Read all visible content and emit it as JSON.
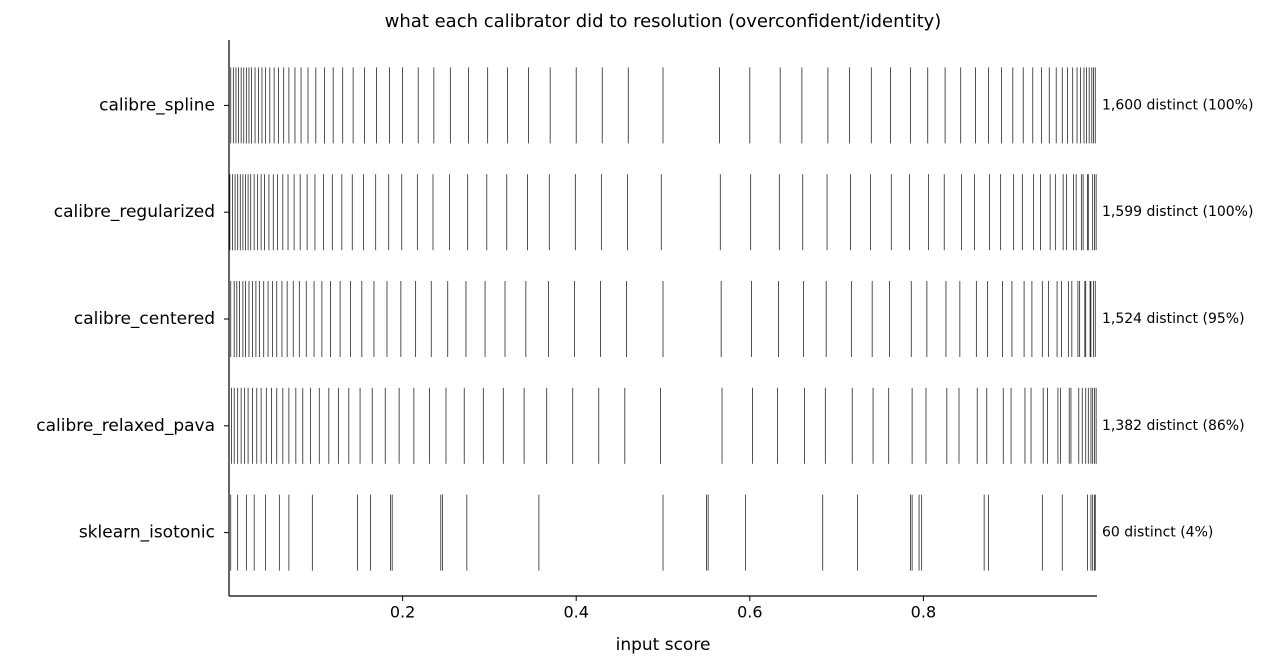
{
  "chart_data": {
    "type": "rug",
    "title": "what each calibrator did to resolution (overconfident/identity)",
    "xlabel": "input score",
    "xlim": [
      0,
      1
    ],
    "xticks": [
      0.2,
      0.4,
      0.6,
      0.8
    ],
    "color": "#000000",
    "series": [
      {
        "name": "calibre_spline",
        "annotation": "1,600 distinct (100%)",
        "values": [
          0.002,
          0.005,
          0.008,
          0.011,
          0.014,
          0.017,
          0.02,
          0.023,
          0.026,
          0.03,
          0.034,
          0.038,
          0.042,
          0.047,
          0.052,
          0.057,
          0.063,
          0.069,
          0.076,
          0.083,
          0.091,
          0.1,
          0.11,
          0.12,
          0.131,
          0.143,
          0.156,
          0.17,
          0.185,
          0.2,
          0.218,
          0.236,
          0.255,
          0.276,
          0.298,
          0.321,
          0.345,
          0.37,
          0.4,
          0.43,
          0.46,
          0.5,
          0.565,
          0.6,
          0.635,
          0.66,
          0.69,
          0.715,
          0.74,
          0.762,
          0.785,
          0.805,
          0.825,
          0.843,
          0.86,
          0.875,
          0.89,
          0.903,
          0.915,
          0.926,
          0.936,
          0.945,
          0.953,
          0.96,
          0.966,
          0.972,
          0.977,
          0.981,
          0.985,
          0.988,
          0.991,
          0.994,
          0.996,
          0.998
        ]
      },
      {
        "name": "calibre_regularized",
        "annotation": "1,599 distinct (100%)",
        "values": [
          0.001,
          0.004,
          0.007,
          0.01,
          0.013,
          0.016,
          0.019,
          0.022,
          0.025,
          0.029,
          0.033,
          0.037,
          0.041,
          0.046,
          0.051,
          0.056,
          0.062,
          0.068,
          0.075,
          0.082,
          0.09,
          0.099,
          0.109,
          0.119,
          0.13,
          0.142,
          0.155,
          0.169,
          0.184,
          0.199,
          0.217,
          0.235,
          0.254,
          0.275,
          0.297,
          0.32,
          0.344,
          0.369,
          0.399,
          0.429,
          0.459,
          0.498,
          0.566,
          0.601,
          0.634,
          0.661,
          0.689,
          0.716,
          0.739,
          0.763,
          0.784,
          0.806,
          0.824,
          0.844,
          0.859,
          0.876,
          0.889,
          0.904,
          0.914,
          0.927,
          0.935,
          0.946,
          0.952,
          0.961,
          0.965,
          0.973,
          0.976,
          0.982,
          0.984,
          0.989,
          0.99,
          0.995,
          0.997,
          0.999
        ]
      },
      {
        "name": "calibre_centered",
        "annotation": "1,524 distinct (95%)",
        "values": [
          0.002,
          0.006,
          0.009,
          0.012,
          0.016,
          0.019,
          0.023,
          0.027,
          0.031,
          0.035,
          0.04,
          0.045,
          0.05,
          0.055,
          0.061,
          0.067,
          0.074,
          0.081,
          0.089,
          0.098,
          0.107,
          0.117,
          0.128,
          0.14,
          0.153,
          0.167,
          0.182,
          0.198,
          0.215,
          0.233,
          0.252,
          0.273,
          0.295,
          0.318,
          0.342,
          0.368,
          0.398,
          0.428,
          0.458,
          0.5,
          0.567,
          0.602,
          0.633,
          0.662,
          0.688,
          0.717,
          0.741,
          0.761,
          0.786,
          0.804,
          0.826,
          0.842,
          0.861,
          0.874,
          0.891,
          0.902,
          0.916,
          0.925,
          0.937,
          0.944,
          0.954,
          0.959,
          0.967,
          0.971,
          0.978,
          0.98,
          0.986,
          0.987,
          0.992,
          0.993,
          0.996,
          0.998
        ]
      },
      {
        "name": "calibre_relaxed_pava",
        "annotation": "1,382 distinct (86%)",
        "values": [
          0.003,
          0.006,
          0.01,
          0.014,
          0.018,
          0.022,
          0.027,
          0.032,
          0.037,
          0.043,
          0.049,
          0.055,
          0.062,
          0.069,
          0.077,
          0.085,
          0.094,
          0.104,
          0.115,
          0.126,
          0.138,
          0.151,
          0.165,
          0.18,
          0.196,
          0.213,
          0.231,
          0.25,
          0.271,
          0.293,
          0.316,
          0.34,
          0.366,
          0.396,
          0.426,
          0.456,
          0.497,
          0.568,
          0.603,
          0.632,
          0.663,
          0.687,
          0.718,
          0.742,
          0.76,
          0.787,
          0.803,
          0.827,
          0.841,
          0.862,
          0.873,
          0.892,
          0.901,
          0.917,
          0.924,
          0.938,
          0.943,
          0.955,
          0.958,
          0.968,
          0.97,
          0.979,
          0.983,
          0.987,
          0.99,
          0.993,
          0.995,
          0.997,
          0.999
        ]
      },
      {
        "name": "sklearn_isotonic",
        "annotation": "60 distinct (4%)",
        "values": [
          0.002,
          0.01,
          0.02,
          0.029,
          0.042,
          0.058,
          0.069,
          0.096,
          0.148,
          0.163,
          0.186,
          0.188,
          0.244,
          0.246,
          0.274,
          0.357,
          0.5,
          0.55,
          0.552,
          0.595,
          0.684,
          0.724,
          0.785,
          0.787,
          0.795,
          0.798,
          0.87,
          0.875,
          0.937,
          0.96,
          0.989,
          0.993,
          0.995,
          0.997,
          0.998
        ]
      }
    ]
  }
}
